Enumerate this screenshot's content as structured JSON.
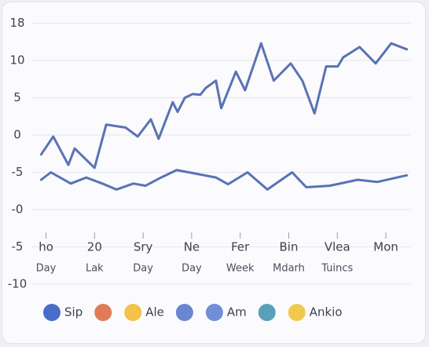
{
  "chart_data": {
    "type": "line",
    "categories": [
      "ho",
      "20",
      "Sry",
      "Ne",
      "Fer",
      "Bin",
      "Vlea",
      "Mon"
    ],
    "subcategories": [
      "Day",
      "Lak",
      "Day",
      "Day",
      "Week",
      "Mdarh",
      "Tuincs",
      null
    ],
    "xlim": [
      -0.3,
      7.5
    ],
    "ylim": [
      -20,
      16
    ],
    "yticks": [
      {
        "value": 15,
        "label": "18"
      },
      10,
      5,
      0,
      -5,
      {
        "value": -10,
        "label": "-0"
      },
      {
        "value": -15,
        "label": "-5"
      },
      {
        "value": -20,
        "label": "-10"
      }
    ],
    "grid": true,
    "series": [
      {
        "color": "#5a72b5",
        "x": [
          -0.1,
          0.15,
          0.46,
          0.59,
          1.0,
          1.24,
          1.64,
          1.89,
          2.16,
          2.32,
          2.61,
          2.71,
          2.86,
          3.02,
          3.18,
          3.29,
          3.5,
          3.61,
          3.91,
          4.1,
          4.43,
          4.69,
          5.04,
          5.28,
          5.53,
          5.77,
          6.01,
          6.12,
          6.46,
          6.79,
          7.11,
          7.43
        ],
        "values": [
          -2.6,
          -0.2,
          -4.0,
          -1.8,
          -4.4,
          1.4,
          1.0,
          -0.2,
          2.1,
          -0.5,
          4.4,
          3.1,
          5.0,
          5.5,
          5.4,
          6.3,
          7.3,
          3.6,
          8.5,
          6.0,
          12.3,
          7.3,
          9.6,
          7.3,
          2.9,
          9.2,
          9.2,
          10.4,
          11.8,
          9.6,
          12.3,
          11.5
        ]
      },
      {
        "color": "#5a72b5",
        "x": [
          -0.1,
          0.1,
          0.51,
          0.83,
          1.16,
          1.45,
          1.8,
          2.05,
          2.37,
          2.69,
          3.1,
          3.5,
          3.75,
          4.15,
          4.56,
          5.07,
          5.36,
          5.84,
          6.42,
          6.82,
          7.43
        ],
        "values": [
          -6.0,
          -5.0,
          -6.5,
          -5.7,
          -6.5,
          -7.3,
          -6.5,
          -6.8,
          -5.7,
          -4.7,
          -5.2,
          -5.7,
          -6.6,
          -5.0,
          -7.3,
          -5.0,
          -7.0,
          -6.8,
          -6.0,
          -6.3,
          -5.4
        ]
      }
    ],
    "legend": [
      {
        "color": "#4a6cc9",
        "label": "Sip"
      },
      {
        "color": "#e07b5a",
        "label": null
      },
      {
        "color": "#f2c24a",
        "label": "Ale"
      },
      {
        "color": "#6b86d0",
        "label": null
      },
      {
        "color": "#6f8fd6",
        "label": "Am"
      },
      {
        "color": "#5aa0b8",
        "label": null
      },
      {
        "color": "#f2c94c",
        "label": "Ankio"
      }
    ]
  }
}
